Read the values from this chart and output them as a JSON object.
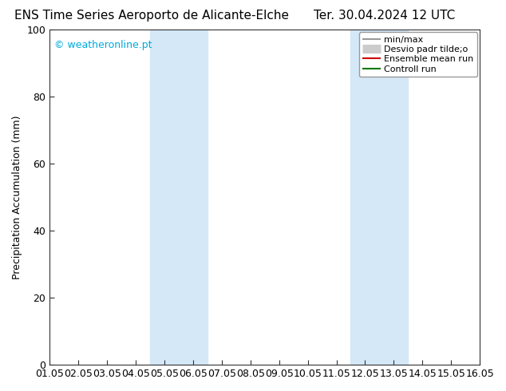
{
  "title_left": "ENS Time Series Aeroporto de Alicante-Elche",
  "title_right": "Ter. 30.04.2024 12 UTC",
  "ylabel": "Precipitation Accumulation (mm)",
  "ylim": [
    0,
    100
  ],
  "xlim": [
    0,
    15
  ],
  "xtick_labels": [
    "01.05",
    "02.05",
    "03.05",
    "04.05",
    "05.05",
    "06.05",
    "07.05",
    "08.05",
    "09.05",
    "10.05",
    "11.05",
    "12.05",
    "13.05",
    "14.05",
    "15.05",
    "16.05"
  ],
  "xtick_positions": [
    0,
    1,
    2,
    3,
    4,
    5,
    6,
    7,
    8,
    9,
    10,
    11,
    12,
    13,
    14,
    15
  ],
  "ytick_positions": [
    0,
    20,
    40,
    60,
    80,
    100
  ],
  "shaded_bands": [
    {
      "x_start": 3.5,
      "x_end": 5.5
    },
    {
      "x_start": 10.5,
      "x_end": 12.5
    }
  ],
  "shade_color": "#d4e8f8",
  "watermark_text": "© weatheronline.pt",
  "watermark_color": "#00aadd",
  "legend_items": [
    {
      "label": "min/max",
      "color": "#999999",
      "lw": 1.5
    },
    {
      "label": "Desvio padr tilde;o",
      "color": "#cccccc",
      "lw": 8
    },
    {
      "label": "Ensemble mean run",
      "color": "#cc0000",
      "lw": 1.5
    },
    {
      "label": "Controll run",
      "color": "#007700",
      "lw": 1.5
    }
  ],
  "bg_color": "#ffffff",
  "spine_color": "#333333",
  "title_fontsize": 11,
  "axis_label_fontsize": 9,
  "tick_fontsize": 9,
  "watermark_fontsize": 9,
  "legend_fontsize": 8
}
